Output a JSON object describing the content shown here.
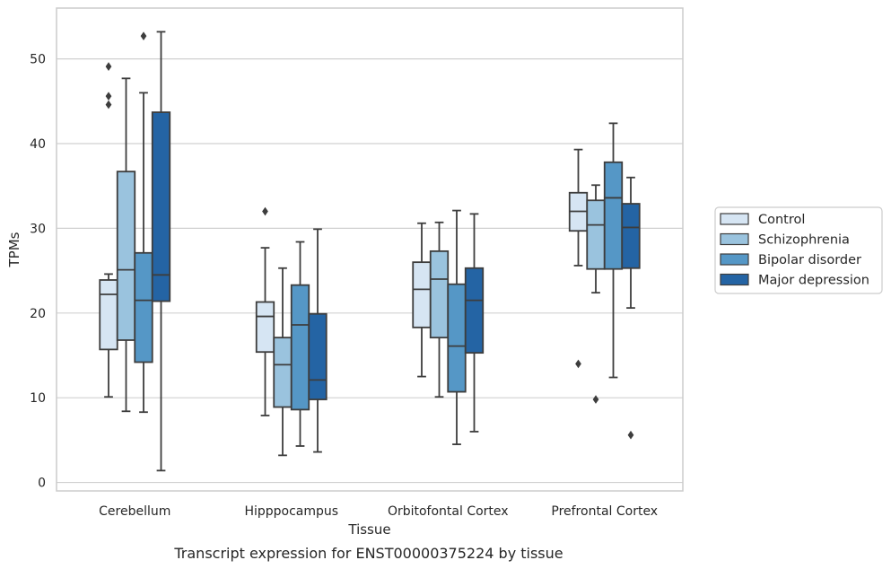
{
  "caption": "Transcript expression for ENST00000375224 by tissue",
  "chart_data": {
    "type": "box",
    "xlabel": "Tissue",
    "ylabel": "TPMs",
    "ylim": [
      -1,
      56
    ],
    "yticks": [
      0,
      10,
      20,
      30,
      40,
      50
    ],
    "grid": "horizontal",
    "legend_position": "right",
    "categories": [
      "Cerebellum",
      "Hipppocampus",
      "Orbitofontal Cortex",
      "Prefrontal Cortex"
    ],
    "series": [
      {
        "name": "Control",
        "color": "#d6e5f3",
        "boxes": [
          {
            "whislo": 10.1,
            "q1": 15.7,
            "med": 22.2,
            "q3": 23.9,
            "whishi": 24.6,
            "fliers": [
              49.1,
              45.6,
              44.6
            ]
          },
          {
            "whislo": 7.9,
            "q1": 15.4,
            "med": 19.6,
            "q3": 21.3,
            "whishi": 27.7,
            "fliers": [
              32.0
            ]
          },
          {
            "whislo": 12.5,
            "q1": 18.3,
            "med": 22.8,
            "q3": 26.0,
            "whishi": 30.6,
            "fliers": []
          },
          {
            "whislo": 25.6,
            "q1": 29.7,
            "med": 32.0,
            "q3": 34.2,
            "whishi": 39.3,
            "fliers": [
              14.0
            ]
          }
        ]
      },
      {
        "name": "Schizophrenia",
        "color": "#9ac3de",
        "boxes": [
          {
            "whislo": 8.4,
            "q1": 16.8,
            "med": 25.1,
            "q3": 36.7,
            "whishi": 47.7,
            "fliers": []
          },
          {
            "whislo": 3.2,
            "q1": 8.9,
            "med": 13.9,
            "q3": 17.1,
            "whishi": 25.3,
            "fliers": []
          },
          {
            "whislo": 10.1,
            "q1": 17.1,
            "med": 24.0,
            "q3": 27.3,
            "whishi": 30.7,
            "fliers": []
          },
          {
            "whislo": 22.4,
            "q1": 25.2,
            "med": 30.4,
            "q3": 33.3,
            "whishi": 35.1,
            "fliers": [
              9.8
            ]
          }
        ]
      },
      {
        "name": "Bipolar disorder",
        "color": "#5597c6",
        "boxes": [
          {
            "whislo": 8.3,
            "q1": 14.2,
            "med": 21.5,
            "q3": 27.1,
            "whishi": 46.0,
            "fliers": [
              52.7
            ]
          },
          {
            "whislo": 4.3,
            "q1": 8.6,
            "med": 18.6,
            "q3": 23.3,
            "whishi": 28.4,
            "fliers": []
          },
          {
            "whislo": 4.5,
            "q1": 10.7,
            "med": 16.1,
            "q3": 23.4,
            "whishi": 32.1,
            "fliers": []
          },
          {
            "whislo": 12.4,
            "q1": 25.2,
            "med": 33.6,
            "q3": 37.8,
            "whishi": 42.4,
            "fliers": []
          }
        ]
      },
      {
        "name": "Major depression",
        "color": "#2464a4",
        "boxes": [
          {
            "whislo": 1.4,
            "q1": 21.4,
            "med": 24.5,
            "q3": 43.7,
            "whishi": 53.2,
            "fliers": []
          },
          {
            "whislo": 3.6,
            "q1": 9.8,
            "med": 12.1,
            "q3": 19.9,
            "whishi": 29.9,
            "fliers": []
          },
          {
            "whislo": 6.0,
            "q1": 15.3,
            "med": 21.5,
            "q3": 25.3,
            "whishi": 31.7,
            "fliers": []
          },
          {
            "whislo": 20.6,
            "q1": 25.3,
            "med": 30.1,
            "q3": 32.9,
            "whishi": 36.0,
            "fliers": [
              5.6
            ]
          }
        ]
      }
    ]
  }
}
